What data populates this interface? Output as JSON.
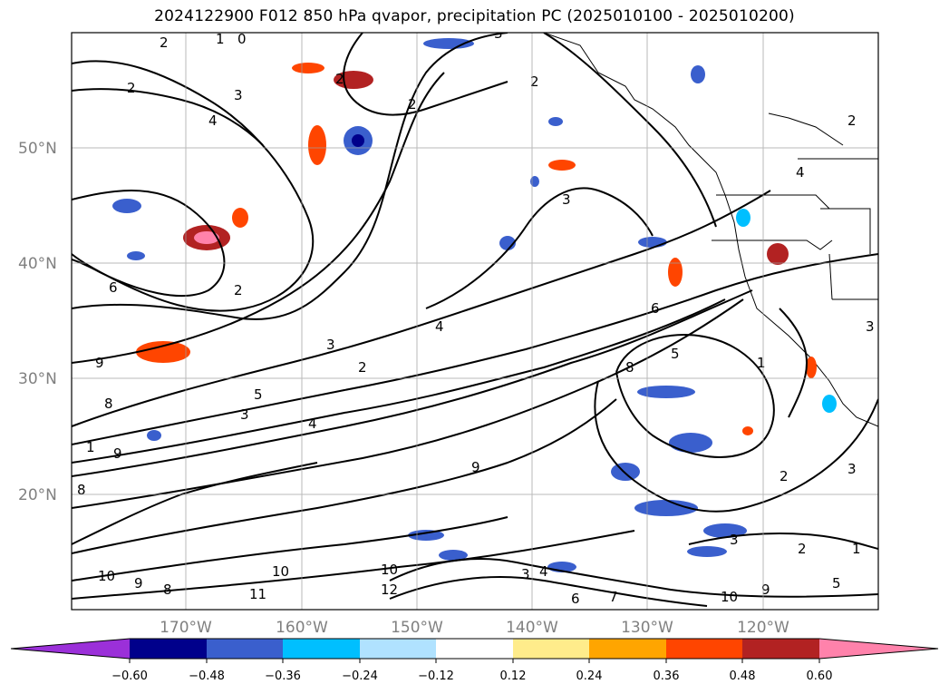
{
  "title": "2024122900 F012 850 hPa qvapor, precipitation PC (2025010100 - 2025010200)",
  "lat_labels": [
    "50°N",
    "40°N",
    "30°N",
    "20°N"
  ],
  "lon_labels": [
    "170°W",
    "160°W",
    "150°W",
    "140°W",
    "130°W",
    "120°W"
  ],
  "colorbar": {
    "ticks": [
      "−0.60",
      "−0.48",
      "−0.36",
      "−0.24",
      "−0.12",
      "0.12",
      "0.24",
      "0.36",
      "0.48",
      "0.60"
    ],
    "colors": [
      "#9b30d9",
      "#00008b",
      "#3a5fcd",
      "#00bfff",
      "#b0e2ff",
      "#ffffff",
      "#ffec8b",
      "#ffa500",
      "#ff4500",
      "#b22222",
      "#ff82ab"
    ]
  },
  "contour_labels": [
    "2",
    "1",
    "0",
    "3",
    "2",
    "4",
    "2",
    "2",
    "3",
    "2",
    "3",
    "6",
    "2",
    "4",
    "3",
    "2",
    "9",
    "8",
    "5",
    "4",
    "3",
    "1",
    "9",
    "8",
    "10",
    "11",
    "10",
    "12",
    "10",
    "9",
    "8",
    "3",
    "4",
    "6",
    "7",
    "8",
    "9",
    "5",
    "2",
    "1",
    "3",
    "1",
    "2",
    "3",
    "4",
    "2",
    "10",
    "9",
    "5",
    "6",
    "3"
  ]
}
